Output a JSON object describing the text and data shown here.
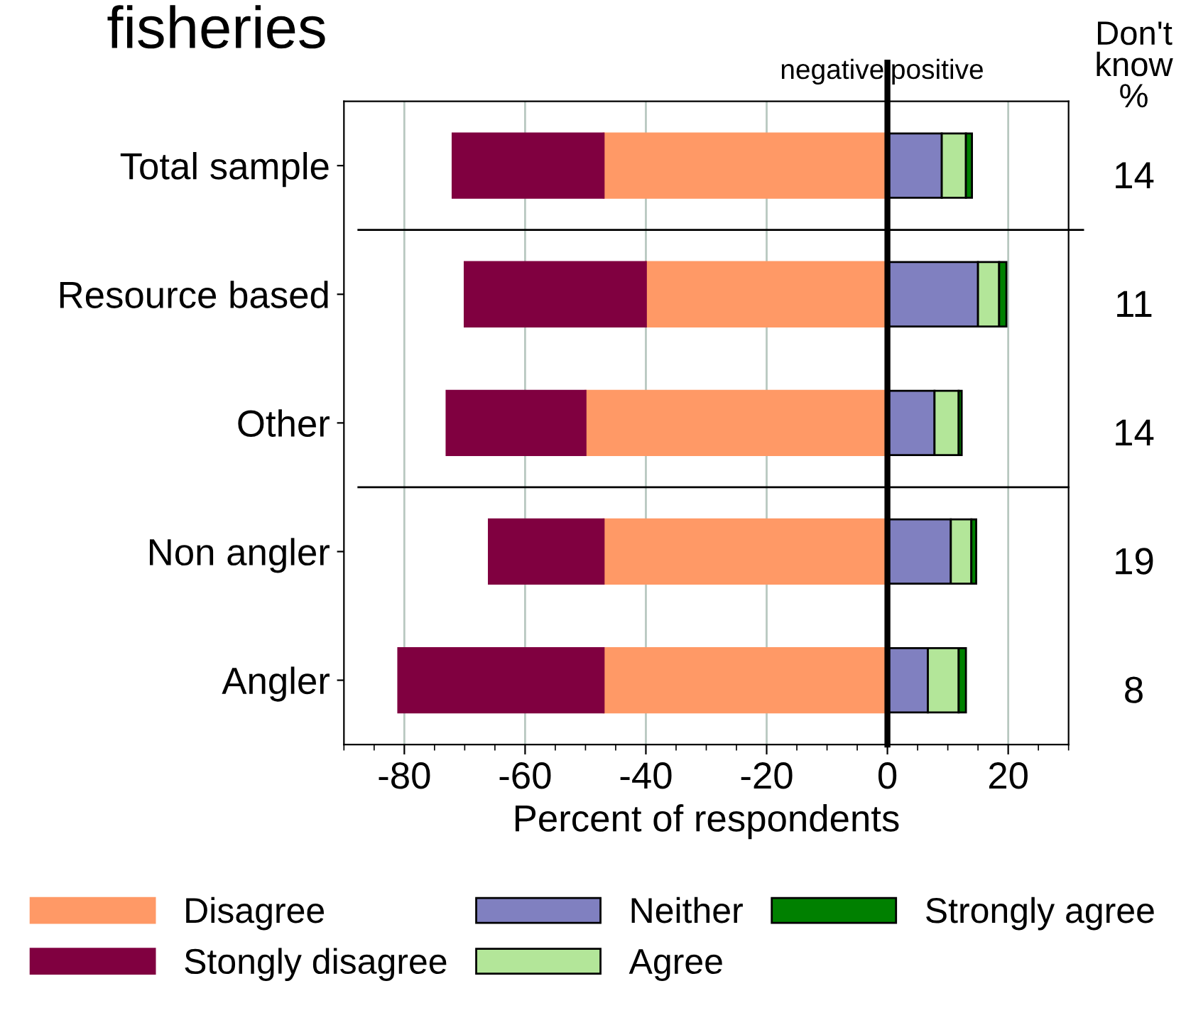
{
  "chart_data": {
    "type": "bar",
    "orientation": "horizontal",
    "stacked": true,
    "title": "fisheries",
    "xlabel": "Percent of respondents",
    "categories": [
      "Total sample",
      "Resource based",
      "Other",
      "Non angler",
      "Angler"
    ],
    "series": [
      {
        "name": "Disagree",
        "color": "#ff9966",
        "values": [
          -47,
          -40,
          -50,
          -47,
          -47
        ]
      },
      {
        "name": "Stongly disagree",
        "color": "#800040",
        "values": [
          -25,
          -30,
          -23,
          -19,
          -34
        ]
      },
      {
        "name": "Neither",
        "color": "#8080c0",
        "values": [
          9,
          15,
          7.8,
          10.5,
          6.7
        ]
      },
      {
        "name": "Agree",
        "color": "#b3e699",
        "values": [
          4,
          3.5,
          4,
          3.4,
          5.1
        ]
      },
      {
        "name": "Strongly agree",
        "color": "#008000",
        "values": [
          1,
          1.2,
          0.5,
          0.8,
          1.2
        ]
      }
    ],
    "xlim": [
      -90,
      30
    ],
    "xticks": [
      -80,
      -60,
      -40,
      -20,
      0,
      20
    ],
    "grid": "x",
    "legend": "bottom",
    "ref_lines": [
      {
        "axis": "x",
        "value": 0,
        "color": "#000000"
      }
    ],
    "annotations": [
      "negative",
      "positive",
      "Don't\nknow\n%",
      "14",
      "11",
      "14",
      "19",
      "8"
    ]
  }
}
